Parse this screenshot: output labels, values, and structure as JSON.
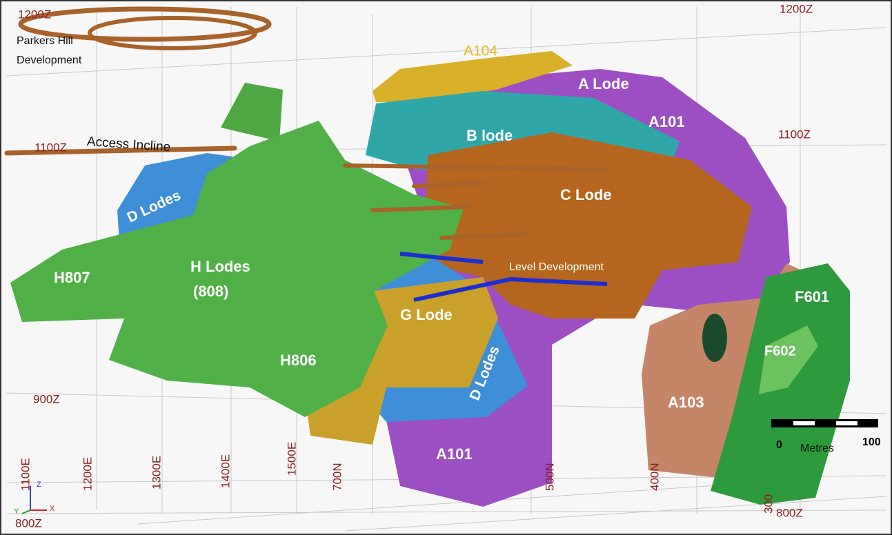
{
  "labels": [
    {
      "text": "Parkers Hill"
    },
    {
      "text": "Development"
    },
    {
      "text": "A104"
    },
    {
      "text": "A Lode"
    },
    {
      "text": "A101"
    },
    {
      "text": "B lode"
    },
    {
      "text": "Access Incline"
    },
    {
      "text": "D Lodes"
    },
    {
      "text": "C Lode"
    },
    {
      "text": "H807"
    },
    {
      "text": "H Lodes"
    },
    {
      "text": "(808)"
    },
    {
      "text": "Level Development"
    },
    {
      "text": "G Lode"
    },
    {
      "text": "H806"
    },
    {
      "text": "D Lodes"
    },
    {
      "text": "F601"
    },
    {
      "text": "F602"
    },
    {
      "text": "A103"
    },
    {
      "text": "A101"
    }
  ],
  "grid_labels": [
    "1200Z",
    "1200Z",
    "1100Z",
    "1100Z",
    "900Z",
    "800Z",
    "800Z",
    "1100E",
    "1200E",
    "1300E",
    "1400E",
    "1500E",
    "700N",
    "500N",
    "400N",
    "300"
  ],
  "scale_bar": {
    "start": "0",
    "unit": "Metres",
    "end": "100"
  },
  "axes_triad": [
    "Z",
    "X",
    "Y"
  ]
}
